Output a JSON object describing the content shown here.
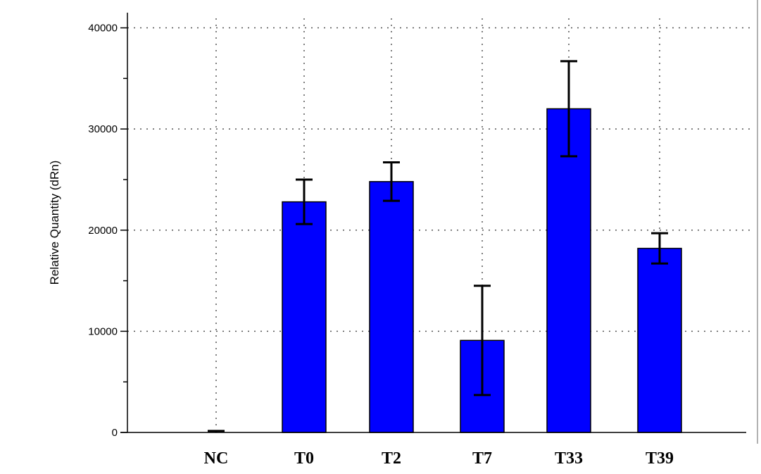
{
  "chart_data": {
    "type": "bar",
    "ylabel": "Relative Quantity (dRn)",
    "xlabel": "",
    "categories": [
      "NC",
      "T0",
      "T2",
      "T7",
      "T33",
      "T39"
    ],
    "values": [
      0,
      22800,
      24800,
      9100,
      32000,
      18200
    ],
    "error": [
      150,
      2200,
      1900,
      5400,
      4700,
      1500
    ],
    "ylim": [
      0,
      41500
    ],
    "yticks": [
      "0",
      "10000",
      "20000",
      "30000",
      "40000"
    ],
    "grid": true,
    "legend": "none",
    "colors": {
      "bar": "#0000ff",
      "bar_border": "#000000",
      "error": "#000000",
      "grid": "#555555"
    }
  }
}
